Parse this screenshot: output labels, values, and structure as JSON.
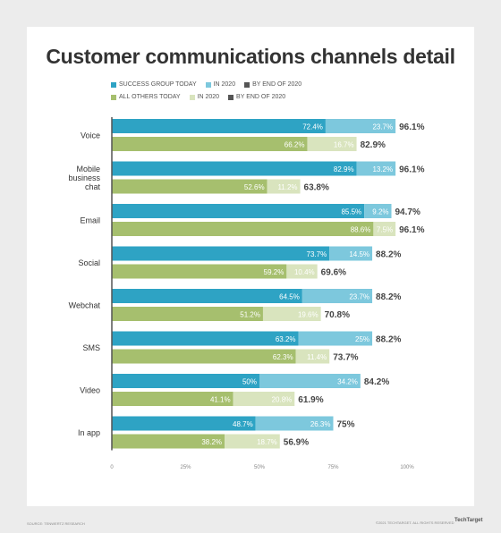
{
  "title": "Customer communications channels detail",
  "colors": {
    "success_today": "#2ea3c4",
    "success_2020": "#7dc8dd",
    "others_today": "#a6bf6e",
    "others_2020": "#d9e4be",
    "by_end": "#555555",
    "total_text": "#444444"
  },
  "legend": {
    "row1": [
      "SUCCESS GROUP TODAY",
      "IN 2020",
      "BY END OF 2020"
    ],
    "row2": [
      "ALL OTHERS TODAY",
      "IN 2020",
      "BY END OF 2020"
    ]
  },
  "chart_data": {
    "type": "bar",
    "orientation": "horizontal-stacked",
    "categories": [
      "Voice",
      "Mobile business chat",
      "Email",
      "Social",
      "Webchat",
      "SMS",
      "Video",
      "In app"
    ],
    "category_lines": [
      [
        "Voice"
      ],
      [
        "Mobile",
        "business",
        "chat"
      ],
      [
        "Email"
      ],
      [
        "Social"
      ],
      [
        "Webchat"
      ],
      [
        "SMS"
      ],
      [
        "Video"
      ],
      [
        "In app"
      ]
    ],
    "series": [
      {
        "name": "SUCCESS GROUP TODAY",
        "today": [
          72.4,
          82.9,
          85.5,
          73.7,
          64.5,
          63.2,
          50,
          48.7
        ],
        "today_labels": [
          "72.4%",
          "82.9%",
          "85.5%",
          "73.7%",
          "64.5%",
          "63.2%",
          "50%",
          "48.7%"
        ],
        "in_2020": [
          23.7,
          13.2,
          9.2,
          14.5,
          23.7,
          25,
          34.2,
          26.3
        ],
        "in_2020_labels": [
          "23.7%",
          "13.2%",
          "9.2%",
          "14.5%",
          "23.7%",
          "25%",
          "34.2%",
          "26.3%"
        ],
        "by_end_labels": [
          "96.1%",
          "96.1%",
          "94.7%",
          "88.2%",
          "88.2%",
          "88.2%",
          "84.2%",
          "75%"
        ]
      },
      {
        "name": "ALL OTHERS TODAY",
        "today": [
          66.2,
          52.6,
          88.6,
          59.2,
          51.2,
          62.3,
          41.1,
          38.2
        ],
        "today_labels": [
          "66.2%",
          "52.6%",
          "88.6%",
          "59.2%",
          "51.2%",
          "62.3%",
          "41.1%",
          "38.2%"
        ],
        "in_2020": [
          16.7,
          11.2,
          7.5,
          10.4,
          19.6,
          11.4,
          20.8,
          18.7
        ],
        "in_2020_labels": [
          "16.7%",
          "11.2%",
          "7.5%",
          "10.4%",
          "19.6%",
          "11.4%",
          "20.8%",
          "18.7%"
        ],
        "by_end_labels": [
          "82.9%",
          "63.8%",
          "96.1%",
          "69.6%",
          "70.8%",
          "73.7%",
          "61.9%",
          "56.9%"
        ]
      }
    ],
    "xlim": [
      0,
      100
    ],
    "x_ticks": [
      "0",
      "25%",
      "50%",
      "75%",
      "100%"
    ],
    "legend_position": "top"
  },
  "footer": {
    "source": "SOURCE: TENWERTZ RESEARCH",
    "copyright": "©2021 TECHTARGET. ALL RIGHTS RESERVED",
    "brand": "TechTarget"
  }
}
